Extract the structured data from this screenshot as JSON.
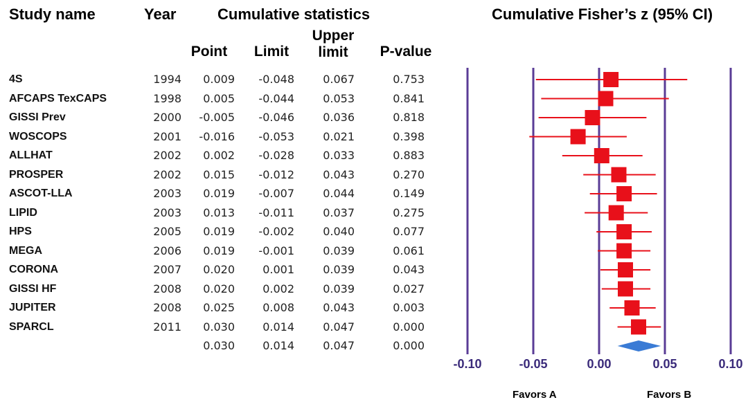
{
  "headers": {
    "study_name": "Study name",
    "year": "Year",
    "cumulative_statistics": "Cumulative statistics",
    "plot_title": "Cumulative Fisher’s z (95% CI)",
    "point": "Point",
    "limit": "Limit",
    "upper_limit_line1": "Upper",
    "upper_limit_line2": "limit",
    "p_value": "P-value"
  },
  "rows": [
    {
      "study": "4S",
      "year": "1994",
      "point": "0.009",
      "lower": "-0.048",
      "upper": "0.067",
      "p": "0.753"
    },
    {
      "study": "AFCAPS TexCAPS",
      "year": "1998",
      "point": "0.005",
      "lower": "-0.044",
      "upper": "0.053",
      "p": "0.841"
    },
    {
      "study": "GISSI Prev",
      "year": "2000",
      "point": "-0.005",
      "lower": "-0.046",
      "upper": "0.036",
      "p": "0.818"
    },
    {
      "study": "WOSCOPS",
      "year": "2001",
      "point": "-0.016",
      "lower": "-0.053",
      "upper": "0.021",
      "p": "0.398"
    },
    {
      "study": "ALLHAT",
      "year": "2002",
      "point": "0.002",
      "lower": "-0.028",
      "upper": "0.033",
      "p": "0.883"
    },
    {
      "study": "PROSPER",
      "year": "2002",
      "point": "0.015",
      "lower": "-0.012",
      "upper": "0.043",
      "p": "0.270"
    },
    {
      "study": "ASCOT-LLA",
      "year": "2003",
      "point": "0.019",
      "lower": "-0.007",
      "upper": "0.044",
      "p": "0.149"
    },
    {
      "study": "LIPID",
      "year": "2003",
      "point": "0.013",
      "lower": "-0.011",
      "upper": "0.037",
      "p": "0.275"
    },
    {
      "study": "HPS",
      "year": "2005",
      "point": "0.019",
      "lower": "-0.002",
      "upper": "0.040",
      "p": "0.077"
    },
    {
      "study": "MEGA",
      "year": "2006",
      "point": "0.019",
      "lower": "-0.001",
      "upper": "0.039",
      "p": "0.061"
    },
    {
      "study": "CORONA",
      "year": "2007",
      "point": "0.020",
      "lower": "0.001",
      "upper": "0.039",
      "p": "0.043"
    },
    {
      "study": "GISSI HF",
      "year": "2008",
      "point": "0.020",
      "lower": "0.002",
      "upper": "0.039",
      "p": "0.027"
    },
    {
      "study": "JUPITER",
      "year": "2008",
      "point": "0.025",
      "lower": "0.008",
      "upper": "0.043",
      "p": "0.003"
    },
    {
      "study": "SPARCL",
      "year": "2011",
      "point": "0.030",
      "lower": "0.014",
      "upper": "0.047",
      "p": "0.000"
    }
  ],
  "summary": {
    "point": "0.030",
    "lower": "0.014",
    "upper": "0.047",
    "p": "0.000"
  },
  "axis": {
    "ticks": [
      "-0.10",
      "-0.05",
      "0.00",
      "0.05",
      "0.10"
    ],
    "favors_a": "Favors A",
    "favors_b": "Favors B"
  },
  "colors": {
    "marker": "#e8101a",
    "ci_line": "#e8101a",
    "summary_diamond": "#3a7bd5",
    "axis_lines": "#5a3c96"
  },
  "chart_data": {
    "type": "forest",
    "title": "Cumulative Fisher’s z (95% CI)",
    "xlim": [
      -0.1,
      0.1
    ],
    "x_ticks": [
      -0.1,
      -0.05,
      0.0,
      0.05,
      0.1
    ],
    "studies": [
      "4S",
      "AFCAPS TexCAPS",
      "GISSI Prev",
      "WOSCOPS",
      "ALLHAT",
      "PROSPER",
      "ASCOT-LLA",
      "LIPID",
      "HPS",
      "MEGA",
      "CORONA",
      "GISSI HF",
      "JUPITER",
      "SPARCL"
    ],
    "point": [
      0.009,
      0.005,
      -0.005,
      -0.016,
      0.002,
      0.015,
      0.019,
      0.013,
      0.019,
      0.019,
      0.02,
      0.02,
      0.025,
      0.03
    ],
    "lower": [
      -0.048,
      -0.044,
      -0.046,
      -0.053,
      -0.028,
      -0.012,
      -0.007,
      -0.011,
      -0.002,
      -0.001,
      0.001,
      0.002,
      0.008,
      0.014
    ],
    "upper": [
      0.067,
      0.053,
      0.036,
      0.021,
      0.033,
      0.043,
      0.044,
      0.037,
      0.04,
      0.039,
      0.039,
      0.039,
      0.043,
      0.047
    ],
    "summary": {
      "point": 0.03,
      "lower": 0.014,
      "upper": 0.047
    },
    "xlabel_left": "Favors A",
    "xlabel_right": "Favors B"
  }
}
